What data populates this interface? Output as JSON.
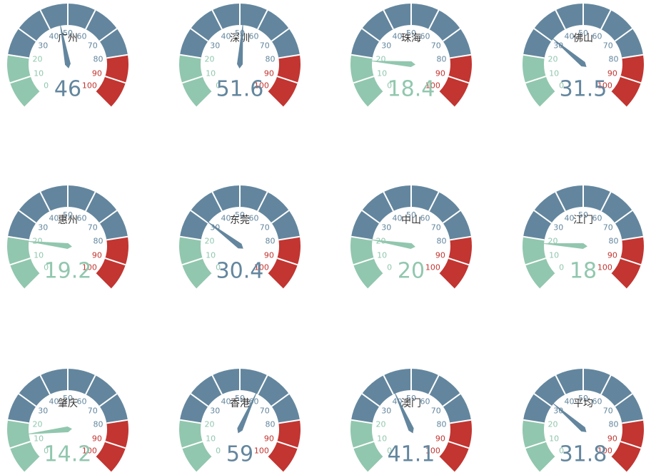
{
  "chart_data": [
    {
      "type": "gauge",
      "title": "广州",
      "value": 46,
      "lim": [
        0,
        100
      ],
      "ticks": [
        0,
        10,
        20,
        30,
        40,
        50,
        60,
        70,
        80,
        90,
        100
      ],
      "bands": [
        {
          "to": 20,
          "color": "#91c7ae"
        },
        {
          "to": 80,
          "color": "#63869e"
        },
        {
          "to": 100,
          "color": "#c23531"
        }
      ]
    },
    {
      "type": "gauge",
      "title": "深圳",
      "value": 51.6,
      "lim": [
        0,
        100
      ],
      "ticks": [
        0,
        10,
        20,
        30,
        40,
        50,
        60,
        70,
        80,
        90,
        100
      ],
      "bands": [
        {
          "to": 20,
          "color": "#91c7ae"
        },
        {
          "to": 80,
          "color": "#63869e"
        },
        {
          "to": 100,
          "color": "#c23531"
        }
      ]
    },
    {
      "type": "gauge",
      "title": "珠海",
      "value": 18.4,
      "lim": [
        0,
        100
      ],
      "ticks": [
        0,
        10,
        20,
        30,
        40,
        50,
        60,
        70,
        80,
        90,
        100
      ],
      "bands": [
        {
          "to": 20,
          "color": "#91c7ae"
        },
        {
          "to": 80,
          "color": "#63869e"
        },
        {
          "to": 100,
          "color": "#c23531"
        }
      ]
    },
    {
      "type": "gauge",
      "title": "佛山",
      "value": 31.5,
      "lim": [
        0,
        100
      ],
      "ticks": [
        0,
        10,
        20,
        30,
        40,
        50,
        60,
        70,
        80,
        90,
        100
      ],
      "bands": [
        {
          "to": 20,
          "color": "#91c7ae"
        },
        {
          "to": 80,
          "color": "#63869e"
        },
        {
          "to": 100,
          "color": "#c23531"
        }
      ]
    },
    {
      "type": "gauge",
      "title": "惠州",
      "value": 19.2,
      "lim": [
        0,
        100
      ],
      "ticks": [
        0,
        10,
        20,
        30,
        40,
        50,
        60,
        70,
        80,
        90,
        100
      ],
      "bands": [
        {
          "to": 20,
          "color": "#91c7ae"
        },
        {
          "to": 80,
          "color": "#63869e"
        },
        {
          "to": 100,
          "color": "#c23531"
        }
      ]
    },
    {
      "type": "gauge",
      "title": "东莞",
      "value": 30.4,
      "lim": [
        0,
        100
      ],
      "ticks": [
        0,
        10,
        20,
        30,
        40,
        50,
        60,
        70,
        80,
        90,
        100
      ],
      "bands": [
        {
          "to": 20,
          "color": "#91c7ae"
        },
        {
          "to": 80,
          "color": "#63869e"
        },
        {
          "to": 100,
          "color": "#c23531"
        }
      ]
    },
    {
      "type": "gauge",
      "title": "中山",
      "value": 20,
      "lim": [
        0,
        100
      ],
      "ticks": [
        0,
        10,
        20,
        30,
        40,
        50,
        60,
        70,
        80,
        90,
        100
      ],
      "bands": [
        {
          "to": 20,
          "color": "#91c7ae"
        },
        {
          "to": 80,
          "color": "#63869e"
        },
        {
          "to": 100,
          "color": "#c23531"
        }
      ]
    },
    {
      "type": "gauge",
      "title": "江门",
      "value": 18,
      "lim": [
        0,
        100
      ],
      "ticks": [
        0,
        10,
        20,
        30,
        40,
        50,
        60,
        70,
        80,
        90,
        100
      ],
      "bands": [
        {
          "to": 20,
          "color": "#91c7ae"
        },
        {
          "to": 80,
          "color": "#63869e"
        },
        {
          "to": 100,
          "color": "#c23531"
        }
      ]
    },
    {
      "type": "gauge",
      "title": "肇庆",
      "value": 14.2,
      "lim": [
        0,
        100
      ],
      "ticks": [
        0,
        10,
        20,
        30,
        40,
        50,
        60,
        70,
        80,
        90,
        100
      ],
      "bands": [
        {
          "to": 20,
          "color": "#91c7ae"
        },
        {
          "to": 80,
          "color": "#63869e"
        },
        {
          "to": 100,
          "color": "#c23531"
        }
      ]
    },
    {
      "type": "gauge",
      "title": "香港",
      "value": 59,
      "lim": [
        0,
        100
      ],
      "ticks": [
        0,
        10,
        20,
        30,
        40,
        50,
        60,
        70,
        80,
        90,
        100
      ],
      "bands": [
        {
          "to": 20,
          "color": "#91c7ae"
        },
        {
          "to": 80,
          "color": "#63869e"
        },
        {
          "to": 100,
          "color": "#c23531"
        }
      ]
    },
    {
      "type": "gauge",
      "title": "澳门",
      "value": 41.1,
      "lim": [
        0,
        100
      ],
      "ticks": [
        0,
        10,
        20,
        30,
        40,
        50,
        60,
        70,
        80,
        90,
        100
      ],
      "bands": [
        {
          "to": 20,
          "color": "#91c7ae"
        },
        {
          "to": 80,
          "color": "#63869e"
        },
        {
          "to": 100,
          "color": "#c23531"
        }
      ]
    },
    {
      "type": "gauge",
      "title": "平均",
      "value": 31.8,
      "lim": [
        0,
        100
      ],
      "ticks": [
        0,
        10,
        20,
        30,
        40,
        50,
        60,
        70,
        80,
        90,
        100
      ],
      "bands": [
        {
          "to": 20,
          "color": "#91c7ae"
        },
        {
          "to": 80,
          "color": "#63869e"
        },
        {
          "to": 100,
          "color": "#c23531"
        }
      ]
    }
  ]
}
